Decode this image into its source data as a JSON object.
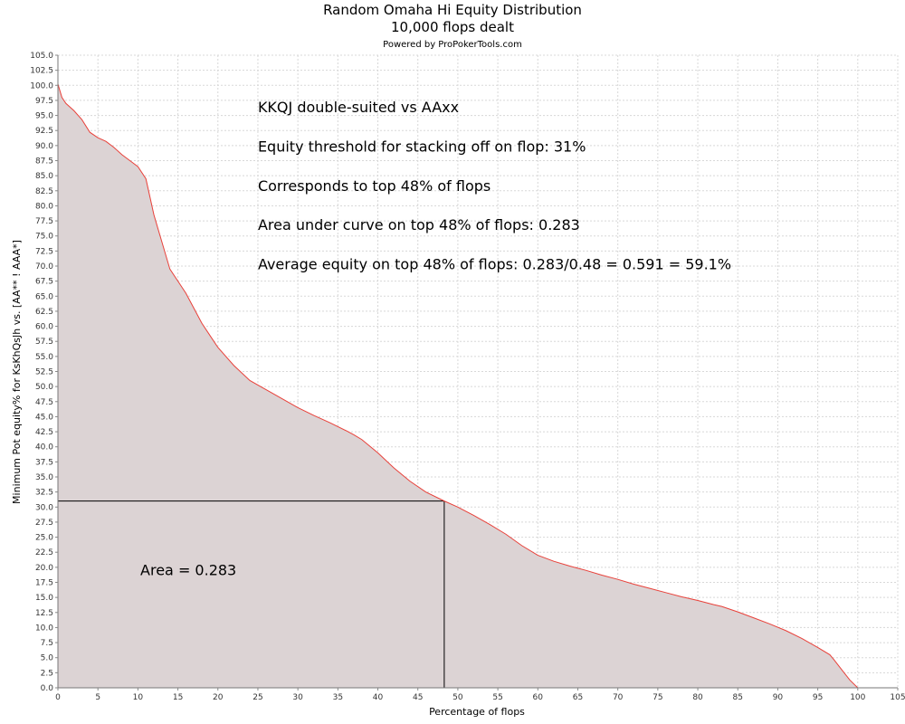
{
  "chart_data": {
    "type": "area",
    "title": "Random Omaha Hi Equity Distribution",
    "subtitle": "10,000 flops dealt",
    "credit": "Powered by ProPokerTools.com",
    "xlabel": "Percentage of flops",
    "ylabel": "Minimum Pot equity% for KsKhQsJh vs. [AA** ! AAA*]",
    "xlim": [
      0,
      105
    ],
    "ylim": [
      0,
      105
    ],
    "x_tick_step": 5,
    "y_tick_step": 2.5,
    "grid": true,
    "colors": {
      "line": "#e8413a",
      "fill": "#dcd3d4",
      "grid": "#d8d8d8"
    },
    "series": [
      {
        "x": [
          0,
          0.5,
          1,
          2,
          3,
          4,
          5,
          6,
          7,
          8,
          9,
          10,
          11,
          12,
          13,
          14,
          15,
          16,
          17,
          18,
          19,
          20,
          22,
          24,
          26,
          28,
          30,
          32,
          34,
          36,
          37,
          38,
          40,
          42,
          44,
          46,
          48.3,
          50,
          52,
          54,
          56,
          58,
          60,
          62,
          64,
          66,
          68,
          70,
          72,
          74,
          76,
          78,
          80,
          82,
          83,
          85,
          87,
          89,
          91,
          93,
          95,
          96.5,
          97,
          98,
          99,
          100
        ],
        "y": [
          100.2,
          98,
          97,
          95.8,
          94.3,
          92.2,
          91.3,
          90.7,
          89.7,
          88.5,
          87.5,
          86.5,
          84.5,
          78.5,
          74,
          69.5,
          67.5,
          65.5,
          63,
          60.5,
          58.5,
          56.5,
          53.5,
          51,
          49.5,
          48,
          46.5,
          45.2,
          44,
          42.7,
          42,
          41.2,
          39,
          36.5,
          34.3,
          32.5,
          31,
          30,
          28.6,
          27.1,
          25.5,
          23.6,
          22,
          21,
          20.2,
          19.5,
          18.7,
          18,
          17.2,
          16.5,
          15.8,
          15.1,
          14.5,
          13.8,
          13.5,
          12.6,
          11.6,
          10.6,
          9.5,
          8.2,
          6.7,
          5.5,
          4.7,
          3,
          1.3,
          0
        ]
      }
    ],
    "threshold": {
      "x": 48.3,
      "y": 31
    },
    "annotations": [
      {
        "text": "KKQJ double-suited vs AAxx",
        "x": 25,
        "y": 95.5
      },
      {
        "text": "Equity threshold for stacking off on flop: 31%",
        "x": 25,
        "y": 89
      },
      {
        "text": "Corresponds to top 48% of flops",
        "x": 25,
        "y": 82.5
      },
      {
        "text": "Area under curve on top 48% of flops: 0.283",
        "x": 25,
        "y": 76
      },
      {
        "text": "Average equity on top 48% of flops: 0.283/0.48 = 0.591 = 59.1%",
        "x": 25,
        "y": 69.5
      },
      {
        "text": "Area = 0.283",
        "x": 10.3,
        "y": 18.7
      }
    ]
  }
}
